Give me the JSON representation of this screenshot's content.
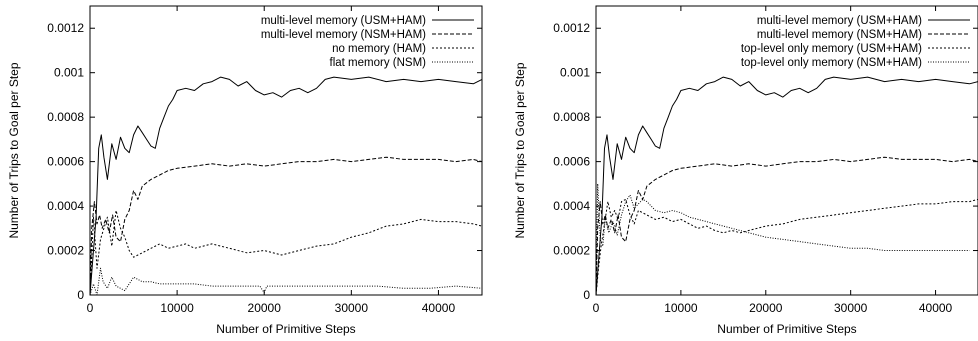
{
  "chart_data": [
    {
      "type": "line",
      "xlabel": "Number of Primitive Steps",
      "ylabel": "Number of Trips to Goal per Step",
      "xlim": [
        0,
        45000
      ],
      "ylim": [
        0,
        0.0013
      ],
      "xticks": [
        0,
        10000,
        20000,
        30000,
        40000
      ],
      "xtick_labels": [
        "0",
        "10000",
        "20000",
        "30000",
        "40000"
      ],
      "yticks": [
        0,
        0.0002,
        0.0004,
        0.0006,
        0.0008,
        0.001,
        0.0012
      ],
      "ytick_labels": [
        "0",
        "0.0002",
        "0.0004",
        "0.0006",
        "0.0008",
        "0.001",
        "0.0012"
      ],
      "legend_position": "top-right",
      "grid": false,
      "series": [
        {
          "name": "multi-level memory (USM+HAM)",
          "style": "solid",
          "x": [
            0,
            300,
            700,
            1000,
            1300,
            1600,
            2000,
            2500,
            3000,
            3500,
            4000,
            4500,
            5000,
            5500,
            6000,
            6500,
            7000,
            7500,
            8000,
            8500,
            9000,
            9500,
            10000,
            11000,
            12000,
            13000,
            14000,
            15000,
            16000,
            17000,
            18000,
            19000,
            20000,
            21000,
            22000,
            23000,
            24000,
            25000,
            26000,
            27000,
            28000,
            30000,
            32000,
            34000,
            36000,
            38000,
            40000,
            42000,
            44000,
            45000
          ],
          "y": [
            0,
            0.00015,
            0.00035,
            0.00066,
            0.00072,
            0.00062,
            0.00052,
            0.00068,
            0.00061,
            0.00071,
            0.00066,
            0.00064,
            0.00072,
            0.00076,
            0.00073,
            0.0007,
            0.00067,
            0.00066,
            0.00075,
            0.0008,
            0.00085,
            0.00088,
            0.00092,
            0.00093,
            0.00092,
            0.00095,
            0.00096,
            0.00098,
            0.00097,
            0.00094,
            0.00096,
            0.00092,
            0.0009,
            0.00091,
            0.00089,
            0.00092,
            0.00093,
            0.00091,
            0.00093,
            0.00097,
            0.00098,
            0.00097,
            0.00098,
            0.00096,
            0.00097,
            0.00096,
            0.00097,
            0.00096,
            0.00095,
            0.00097
          ]
        },
        {
          "name": "multi-level memory (NSM+HAM)",
          "style": "dashed",
          "x": [
            0,
            200,
            500,
            800,
            1100,
            1400,
            1800,
            2200,
            2600,
            3000,
            3500,
            4000,
            4500,
            5000,
            5500,
            6000,
            7000,
            8000,
            9000,
            10000,
            12000,
            14000,
            16000,
            18000,
            20000,
            22000,
            24000,
            26000,
            28000,
            30000,
            32000,
            34000,
            36000,
            38000,
            40000,
            42000,
            44000,
            45000
          ],
          "y": [
            0,
            0.0003,
            0.00042,
            0.00032,
            0.00036,
            0.0003,
            0.00034,
            0.00028,
            0.00036,
            0.00026,
            0.00024,
            0.00034,
            0.00038,
            0.00047,
            0.00043,
            0.00049,
            0.00052,
            0.00054,
            0.00056,
            0.00057,
            0.00058,
            0.00059,
            0.00058,
            0.00059,
            0.00058,
            0.00059,
            0.0006,
            0.0006,
            0.00061,
            0.0006,
            0.00061,
            0.00062,
            0.00061,
            0.00061,
            0.00061,
            0.0006,
            0.00061,
            0.0006
          ]
        },
        {
          "name": "no memory (HAM)",
          "style": "dotted",
          "x": [
            0,
            400,
            800,
            1200,
            1600,
            2000,
            2500,
            3000,
            3500,
            4000,
            4500,
            5000,
            6000,
            7000,
            8000,
            9000,
            10000,
            11000,
            12000,
            14000,
            16000,
            18000,
            20000,
            22000,
            24000,
            26000,
            28000,
            30000,
            32000,
            34000,
            36000,
            38000,
            40000,
            42000,
            44000,
            45000
          ],
          "y": [
            0,
            0.00035,
            0.00012,
            0.00025,
            0.0003,
            0.00035,
            0.00022,
            0.00038,
            0.0003,
            0.00026,
            0.0002,
            0.00017,
            0.00019,
            0.00021,
            0.00023,
            0.00021,
            0.00022,
            0.00023,
            0.00021,
            0.00023,
            0.00021,
            0.00019,
            0.0002,
            0.00018,
            0.0002,
            0.00022,
            0.00023,
            0.00026,
            0.00028,
            0.00031,
            0.00032,
            0.00034,
            0.00033,
            0.00033,
            0.00032,
            0.00031
          ]
        },
        {
          "name": "flat memory (NSM)",
          "style": "fine-dotted",
          "x": [
            0,
            400,
            800,
            1200,
            1500,
            2000,
            2500,
            3000,
            3500,
            4000,
            5000,
            6000,
            7000,
            8000,
            10000,
            12000,
            14000,
            16000,
            18000,
            19500,
            20000,
            20300,
            21000,
            23000,
            25000,
            27000,
            30000,
            33000,
            36000,
            39000,
            42000,
            45000
          ],
          "y": [
            0,
            5e-05,
            0,
            0.00012,
            6e-05,
            3e-05,
            8e-05,
            4e-05,
            3e-05,
            2e-05,
            8e-05,
            6e-05,
            6e-05,
            5e-05,
            5e-05,
            5e-05,
            4e-05,
            4e-05,
            4e-05,
            4e-05,
            1e-05,
            4e-05,
            4e-05,
            4e-05,
            4e-05,
            4e-05,
            4e-05,
            4e-05,
            3e-05,
            3e-05,
            4e-05,
            3e-05
          ]
        }
      ]
    },
    {
      "type": "line",
      "xlabel": "Number of Primitive Steps",
      "ylabel": "Number of Trips to Goal per Step",
      "xlim": [
        0,
        45000
      ],
      "ylim": [
        0,
        0.0013
      ],
      "xticks": [
        0,
        10000,
        20000,
        30000,
        40000
      ],
      "xtick_labels": [
        "0",
        "10000",
        "20000",
        "30000",
        "40000"
      ],
      "yticks": [
        0,
        0.0002,
        0.0004,
        0.0006,
        0.0008,
        0.001,
        0.0012
      ],
      "ytick_labels": [
        "0",
        "0.0002",
        "0.0004",
        "0.0006",
        "0.0008",
        "0.001",
        "0.0012"
      ],
      "legend_position": "top-right",
      "grid": false,
      "series": [
        {
          "name": "multi-level memory (USM+HAM)",
          "style": "solid",
          "x": [
            0,
            300,
            700,
            1000,
            1300,
            1600,
            2000,
            2500,
            3000,
            3500,
            4000,
            4500,
            5000,
            5500,
            6000,
            6500,
            7000,
            7500,
            8000,
            8500,
            9000,
            9500,
            10000,
            11000,
            12000,
            13000,
            14000,
            15000,
            16000,
            17000,
            18000,
            19000,
            20000,
            21000,
            22000,
            23000,
            24000,
            25000,
            26000,
            27000,
            28000,
            30000,
            32000,
            34000,
            36000,
            38000,
            40000,
            42000,
            44000,
            45000
          ],
          "y": [
            0,
            0.00015,
            0.00035,
            0.00066,
            0.00072,
            0.00062,
            0.00052,
            0.00068,
            0.00061,
            0.00071,
            0.00066,
            0.00064,
            0.00072,
            0.00076,
            0.00073,
            0.0007,
            0.00067,
            0.00066,
            0.00075,
            0.0008,
            0.00085,
            0.00088,
            0.00092,
            0.00093,
            0.00092,
            0.00095,
            0.00096,
            0.00098,
            0.00097,
            0.00094,
            0.00096,
            0.00092,
            0.0009,
            0.00091,
            0.00089,
            0.00092,
            0.00093,
            0.00091,
            0.00093,
            0.00097,
            0.00098,
            0.00097,
            0.00098,
            0.00096,
            0.00097,
            0.00096,
            0.00097,
            0.00096,
            0.00095,
            0.00096
          ]
        },
        {
          "name": "multi-level memory (NSM+HAM)",
          "style": "dashed",
          "x": [
            0,
            200,
            500,
            800,
            1100,
            1400,
            1800,
            2200,
            2600,
            3000,
            3500,
            4000,
            4500,
            5000,
            5500,
            6000,
            7000,
            8000,
            9000,
            10000,
            12000,
            14000,
            16000,
            18000,
            20000,
            22000,
            24000,
            26000,
            28000,
            30000,
            32000,
            34000,
            36000,
            38000,
            40000,
            42000,
            44000,
            45000
          ],
          "y": [
            0,
            0.0003,
            0.00042,
            0.00032,
            0.00036,
            0.0003,
            0.00034,
            0.00028,
            0.00036,
            0.00026,
            0.00024,
            0.00034,
            0.00038,
            0.00047,
            0.00043,
            0.00049,
            0.00052,
            0.00054,
            0.00056,
            0.00057,
            0.00058,
            0.00059,
            0.00058,
            0.00059,
            0.00058,
            0.00059,
            0.0006,
            0.0006,
            0.00061,
            0.0006,
            0.00061,
            0.00062,
            0.00061,
            0.00061,
            0.00061,
            0.0006,
            0.00061,
            0.0006
          ]
        },
        {
          "name": "top-level only memory (USM+HAM)",
          "style": "dotted",
          "x": [
            0,
            300,
            600,
            1000,
            1400,
            1800,
            2200,
            2600,
            3000,
            3500,
            4000,
            4500,
            5000,
            6000,
            7000,
            8000,
            9000,
            10000,
            11000,
            12000,
            13000,
            14000,
            15000,
            16000,
            17000,
            18000,
            19000,
            20000,
            22000,
            24000,
            26000,
            28000,
            30000,
            32000,
            34000,
            36000,
            38000,
            40000,
            42000,
            44000,
            45000
          ],
          "y": [
            0,
            0.00012,
            0.00022,
            0.00032,
            0.00042,
            0.00035,
            0.00038,
            0.00034,
            0.00042,
            0.00043,
            0.00036,
            0.00032,
            0.00038,
            0.00036,
            0.00034,
            0.00035,
            0.00033,
            0.00034,
            0.00032,
            0.0003,
            0.00031,
            0.00029,
            0.00028,
            0.00029,
            0.00028,
            0.00029,
            0.0003,
            0.00031,
            0.00032,
            0.00034,
            0.00035,
            0.00036,
            0.00037,
            0.00038,
            0.00039,
            0.0004,
            0.00041,
            0.00041,
            0.00042,
            0.00042,
            0.00043
          ]
        },
        {
          "name": "top-level only memory (NSM+HAM)",
          "style": "fine-dotted",
          "x": [
            0,
            200,
            500,
            800,
            1100,
            1500,
            2000,
            2500,
            3000,
            3500,
            4000,
            4500,
            5000,
            5500,
            6000,
            7000,
            8000,
            9000,
            10000,
            11000,
            12000,
            13000,
            14000,
            16000,
            18000,
            20000,
            22000,
            24000,
            26000,
            28000,
            30000,
            32000,
            34000,
            36000,
            38000,
            40000,
            42000,
            44000
          ],
          "y": [
            0,
            0.0005,
            0.00025,
            0.00022,
            0.00035,
            0.00028,
            0.00033,
            0.00027,
            0.00036,
            0.00042,
            0.00045,
            0.00039,
            0.00041,
            0.00043,
            0.00042,
            0.00038,
            0.00037,
            0.00038,
            0.00037,
            0.00035,
            0.00034,
            0.00033,
            0.00032,
            0.0003,
            0.00028,
            0.00026,
            0.00025,
            0.00024,
            0.00023,
            0.00022,
            0.00021,
            0.00021,
            0.0002,
            0.0002,
            0.0002,
            0.0002,
            0.0002,
            0.0002
          ]
        }
      ]
    }
  ]
}
